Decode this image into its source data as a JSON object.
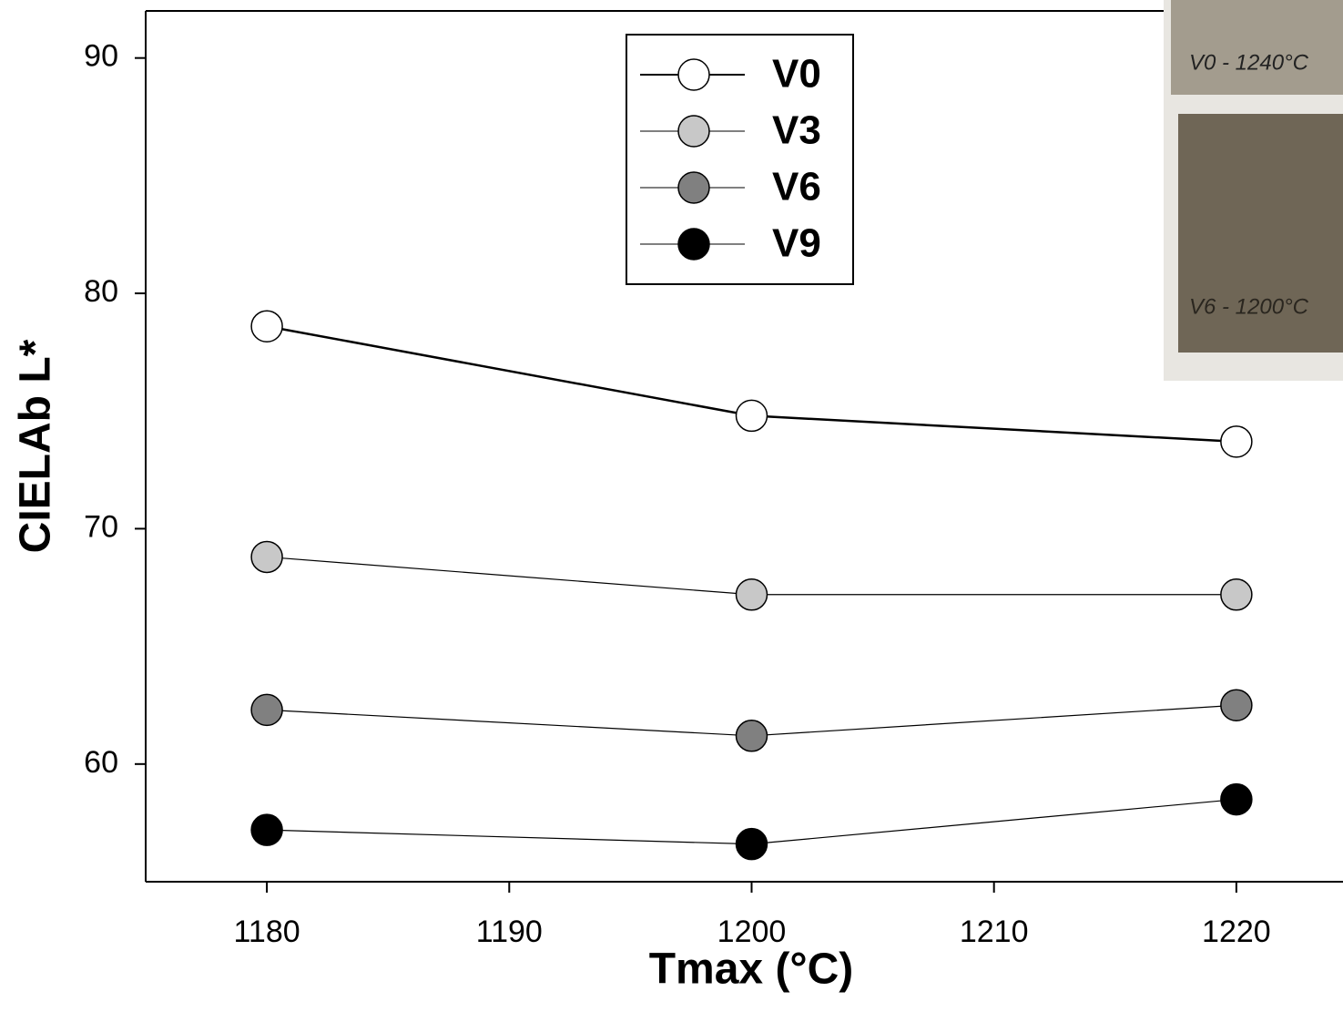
{
  "chart_data": {
    "type": "line",
    "xlabel": "Tmax (°C)",
    "ylabel": "CIELAb L*",
    "x": [
      1180,
      1200,
      1220
    ],
    "series": [
      {
        "name": "V0",
        "color": "#ffffff",
        "values": [
          78.6,
          74.8,
          73.7
        ]
      },
      {
        "name": "V3",
        "color": "#c8c8c8",
        "values": [
          68.8,
          67.2,
          67.2
        ]
      },
      {
        "name": "V6",
        "color": "#808080",
        "values": [
          62.3,
          61.2,
          62.5
        ]
      },
      {
        "name": "V9",
        "color": "#000000",
        "values": [
          57.2,
          56.6,
          58.5
        ]
      }
    ],
    "xlim": [
      1175,
      1224.4
    ],
    "xticks": [
      1180,
      1190,
      1200,
      1210,
      1220
    ],
    "ylim": [
      55,
      92
    ],
    "yticks": [
      60,
      70,
      80,
      90
    ],
    "legend": "top-center",
    "photo_labels": [
      "V0 - 1240°C",
      "V6 - 1200°C"
    ]
  }
}
